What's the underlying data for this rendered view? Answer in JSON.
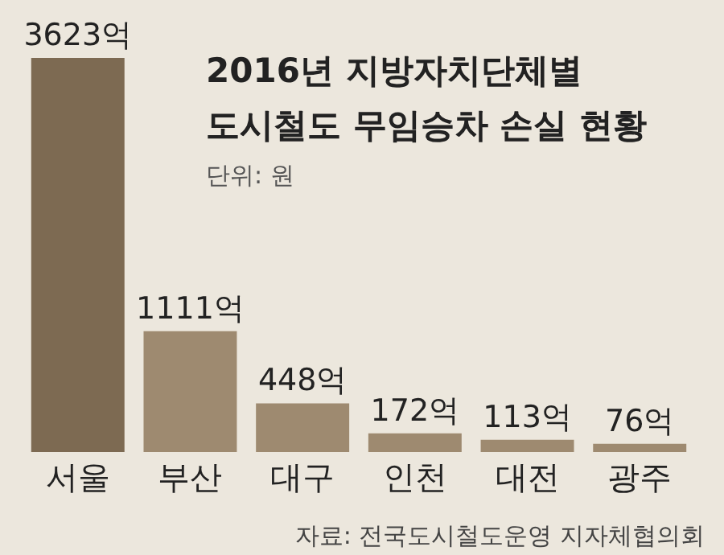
{
  "chart_data": {
    "type": "bar",
    "title": "2016년 지방자치단체별\n도시철도 무임승차 손실 현황",
    "subtitle": "단위: 원",
    "categories": [
      "서울",
      "부산",
      "대구",
      "인천",
      "대전",
      "광주"
    ],
    "values": [
      3623,
      1111,
      448,
      172,
      113,
      76
    ],
    "colors": [
      "#7d6a52",
      "#9e8a70",
      "#9e8a70",
      "#9e8a70",
      "#9e8a70",
      "#9e8a70"
    ],
    "value_labels": [
      "3623억",
      "1111억",
      "448억",
      "172억",
      "113억",
      "76억"
    ],
    "annotations": [
      "자료: 전국도시철도운영 지자체협의회"
    ],
    "tick_labels": "x",
    "grid": false
  }
}
